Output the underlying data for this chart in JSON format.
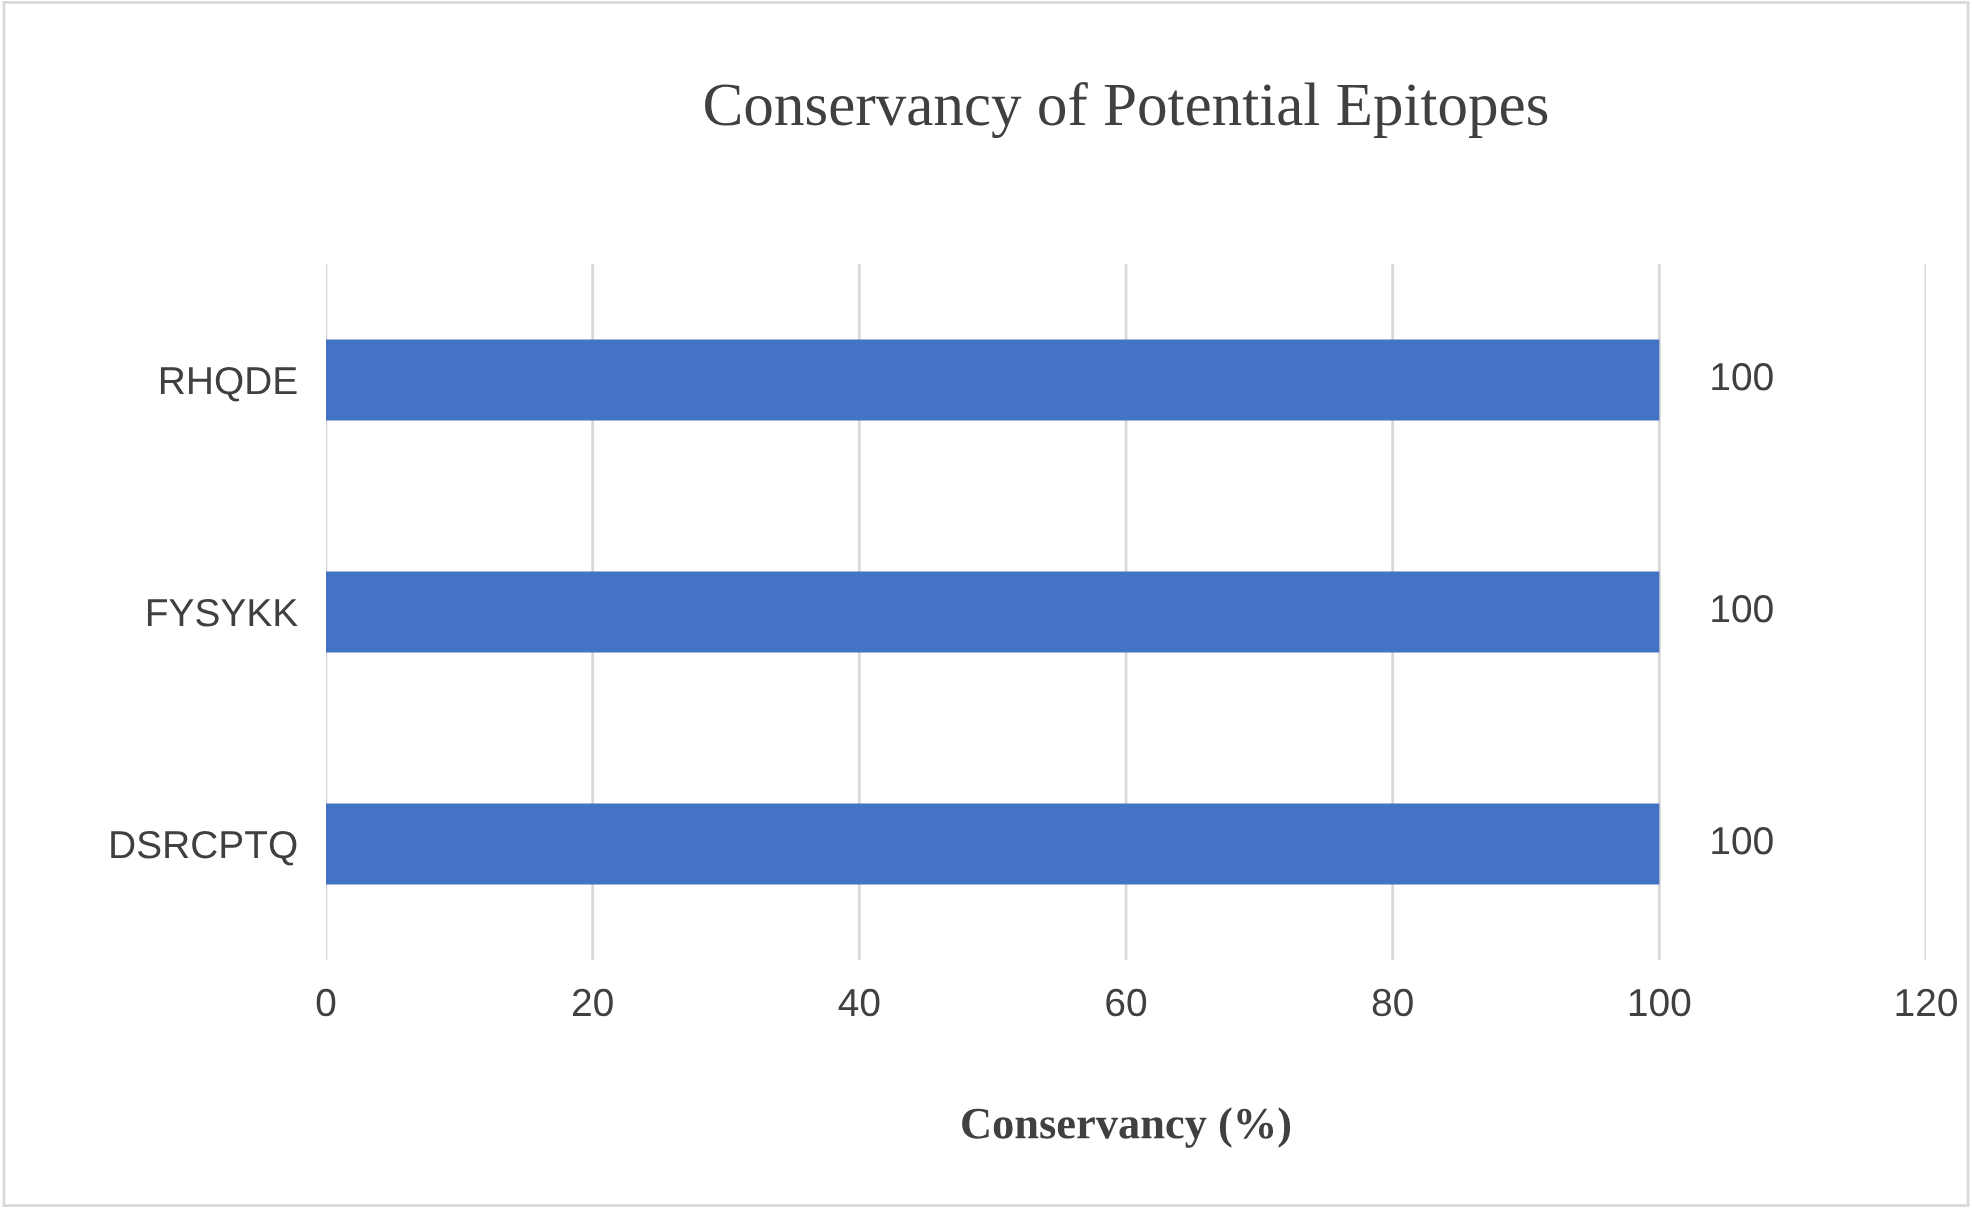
{
  "chart_data": {
    "type": "bar",
    "title": "Conservancy of Potential Epitopes",
    "xlabel": "Conservancy (%)",
    "orientation": "horizontal",
    "categories": [
      "RHQDE",
      "FYSYKK",
      "DSRCPTQ"
    ],
    "values": [
      100,
      100,
      100
    ],
    "color": "#4472c4",
    "xlim": [
      0,
      120
    ],
    "xticks": [
      0,
      20,
      40,
      60,
      80,
      100,
      120
    ],
    "grid": "x",
    "data_labels": true
  }
}
